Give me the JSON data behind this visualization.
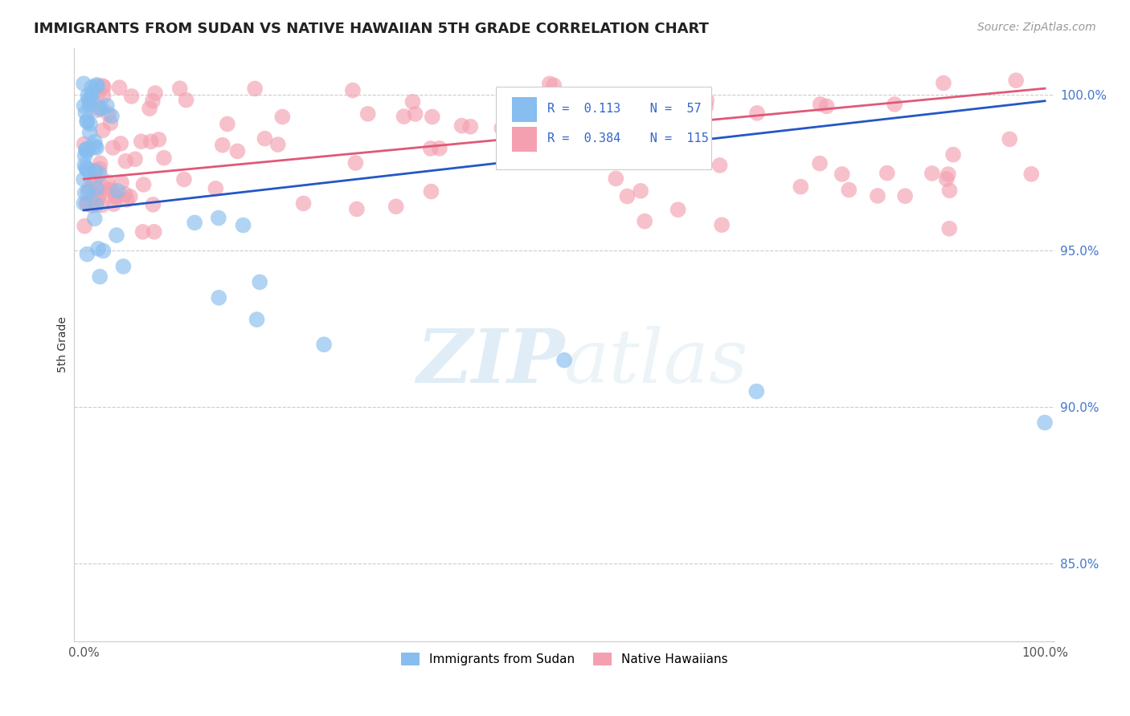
{
  "title": "IMMIGRANTS FROM SUDAN VS NATIVE HAWAIIAN 5TH GRADE CORRELATION CHART",
  "source_text": "Source: ZipAtlas.com",
  "ylabel": "5th Grade",
  "watermark_zip": "ZIP",
  "watermark_atlas": "atlas",
  "xlim": [
    -0.01,
    1.01
  ],
  "ylim": [
    0.825,
    1.015
  ],
  "y_ticks": [
    0.85,
    0.9,
    0.95,
    1.0
  ],
  "y_tick_labels": [
    "85.0%",
    "90.0%",
    "95.0%",
    "100.0%"
  ],
  "blue_R": 0.113,
  "blue_N": 57,
  "pink_R": 0.384,
  "pink_N": 115,
  "blue_color": "#87BDEF",
  "pink_color": "#F4A0B0",
  "blue_line_color": "#2457C5",
  "pink_line_color": "#E05878",
  "grid_color": "#cccccc",
  "legend_label_blue": "Immigrants from Sudan",
  "legend_label_pink": "Native Hawaiians",
  "blue_line_x0": 0.0,
  "blue_line_y0": 0.963,
  "blue_line_x1": 1.0,
  "blue_line_y1": 0.998,
  "pink_line_x0": 0.0,
  "pink_line_y0": 0.973,
  "pink_line_x1": 1.0,
  "pink_line_y1": 1.002
}
